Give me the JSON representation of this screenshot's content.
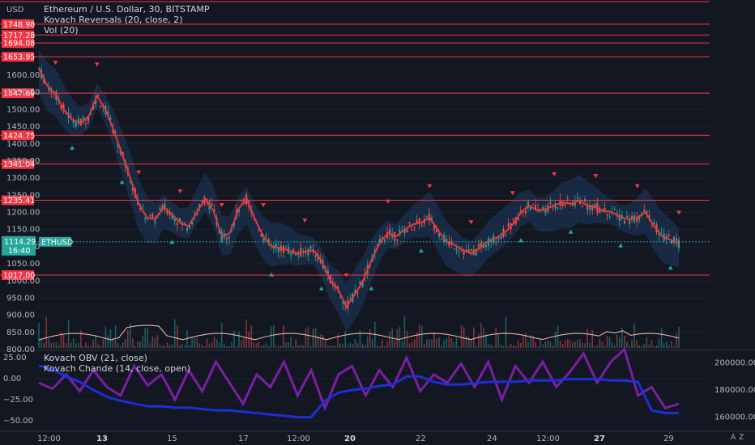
{
  "legend": {
    "title": "Ethereum / U.S. Dollar, 30, BITSTAMP",
    "reversals": "Kovach Reversals (20, close, 2)",
    "volume": "Vol (20)",
    "obv": "Kovach OBV (21, close)",
    "chande": "Kovach Chande (14, close, open)"
  },
  "y_unit": "USD",
  "price_ticks": [
    "1600.00",
    "1550.00",
    "1500.00",
    "1450.00",
    "1400.00",
    "1350.00",
    "1300.00",
    "1250.00",
    "1200.00",
    "1150.00",
    "1100.00",
    "1050.00",
    "1000.00",
    "950.00",
    "900.00",
    "850.00",
    "800.00"
  ],
  "price_tick_values": [
    1600,
    1550,
    1500,
    1450,
    1400,
    1350,
    1300,
    1250,
    1200,
    1150,
    1100,
    1050,
    1000,
    950,
    900,
    850,
    800
  ],
  "levels": [
    {
      "label": "1748.98",
      "value": 1748.98
    },
    {
      "label": "1717.28",
      "value": 1717.28
    },
    {
      "label": "1694.08",
      "value": 1694.08
    },
    {
      "label": "1653.95",
      "value": 1653.95
    },
    {
      "label": "1547.69",
      "value": 1547.69
    },
    {
      "label": "1424.75",
      "value": 1424.75
    },
    {
      "label": "1341.04",
      "value": 1341.04
    },
    {
      "label": "1235.41",
      "value": 1235.41
    },
    {
      "label": "1017.00",
      "value": 1017.0
    }
  ],
  "current": {
    "symbol": "ETHUSD",
    "price": "1114.29",
    "countdown": "16:40",
    "value": 1114.29
  },
  "osc_left_ticks": [
    "25.00",
    "0.00",
    "−25.00",
    "−50.00"
  ],
  "osc_left_values": [
    25,
    0,
    -25,
    -50
  ],
  "osc_right_ticks": [
    "200000.00",
    "180000.00",
    "160000.00"
  ],
  "osc_right_values": [
    200000,
    180000,
    160000
  ],
  "x_ticks": [
    {
      "label": "12:00",
      "bold": false
    },
    {
      "label": "13",
      "bold": true
    },
    {
      "label": "15",
      "bold": false
    },
    {
      "label": "17",
      "bold": false
    },
    {
      "label": "12:00",
      "bold": false
    },
    {
      "label": "20",
      "bold": true
    },
    {
      "label": "22",
      "bold": false
    },
    {
      "label": "24",
      "bold": false
    },
    {
      "label": "12:00",
      "bold": false
    },
    {
      "label": "27",
      "bold": true
    },
    {
      "label": "29",
      "bold": false
    }
  ],
  "corner": {
    "auto": "A",
    "zoom": "Z"
  },
  "colors": {
    "bg": "#131722",
    "grid": "#1e2230",
    "level": "#f23645",
    "up": "#26a69a",
    "down": "#ef5350",
    "ma": "#e53935",
    "band": "#1e3a5f",
    "obv": "#1c2fd6",
    "chande": "#7b1fa2",
    "vol": "#f6c2b0",
    "current": "#26a69a"
  },
  "chart_data": {
    "type": "line",
    "title": "Ethereum / U.S. Dollar, 30, BITSTAMP",
    "ylim": [
      780,
      1760
    ],
    "price_path": [
      1620,
      1570,
      1545,
      1500,
      1470,
      1460,
      1480,
      1540,
      1500,
      1440,
      1370,
      1300,
      1225,
      1185,
      1180,
      1215,
      1195,
      1170,
      1160,
      1200,
      1240,
      1205,
      1130,
      1140,
      1210,
      1240,
      1180,
      1130,
      1100,
      1095,
      1090,
      1080,
      1085,
      1090,
      1060,
      1005,
      975,
      925,
      960,
      1000,
      1060,
      1110,
      1140,
      1130,
      1150,
      1165,
      1170,
      1185,
      1150,
      1115,
      1105,
      1090,
      1080,
      1095,
      1115,
      1125,
      1140,
      1165,
      1200,
      1220,
      1205,
      1210,
      1220,
      1230,
      1225,
      1235,
      1220,
      1215,
      1205,
      1200,
      1185,
      1180,
      1185,
      1200,
      1160,
      1130,
      1120,
      1108
    ],
    "obv_path": [
      198000,
      195000,
      190000,
      186000,
      180000,
      175000,
      172000,
      170000,
      168000,
      168000,
      167000,
      167000,
      166000,
      165000,
      165000,
      164000,
      163000,
      162000,
      161000,
      160000,
      160000,
      172000,
      178000,
      180000,
      181000,
      183000,
      184000,
      190000,
      190000,
      186000,
      184000,
      184000,
      185000,
      186000,
      186000,
      186000,
      187000,
      187000,
      187000,
      188000,
      188000,
      188000,
      187000,
      187000,
      186000,
      165000,
      163000,
      163000
    ],
    "chande_path": [
      -5,
      -12,
      5,
      -15,
      10,
      -10,
      -20,
      15,
      -8,
      5,
      -25,
      10,
      -15,
      20,
      -5,
      -30,
      5,
      -10,
      20,
      -20,
      10,
      -35,
      5,
      15,
      -20,
      10,
      -10,
      25,
      -15,
      5,
      -5,
      18,
      -10,
      20,
      -25,
      15,
      -5,
      20,
      -10,
      8,
      30,
      -5,
      20,
      35,
      -20,
      -10,
      -35,
      -30
    ]
  }
}
